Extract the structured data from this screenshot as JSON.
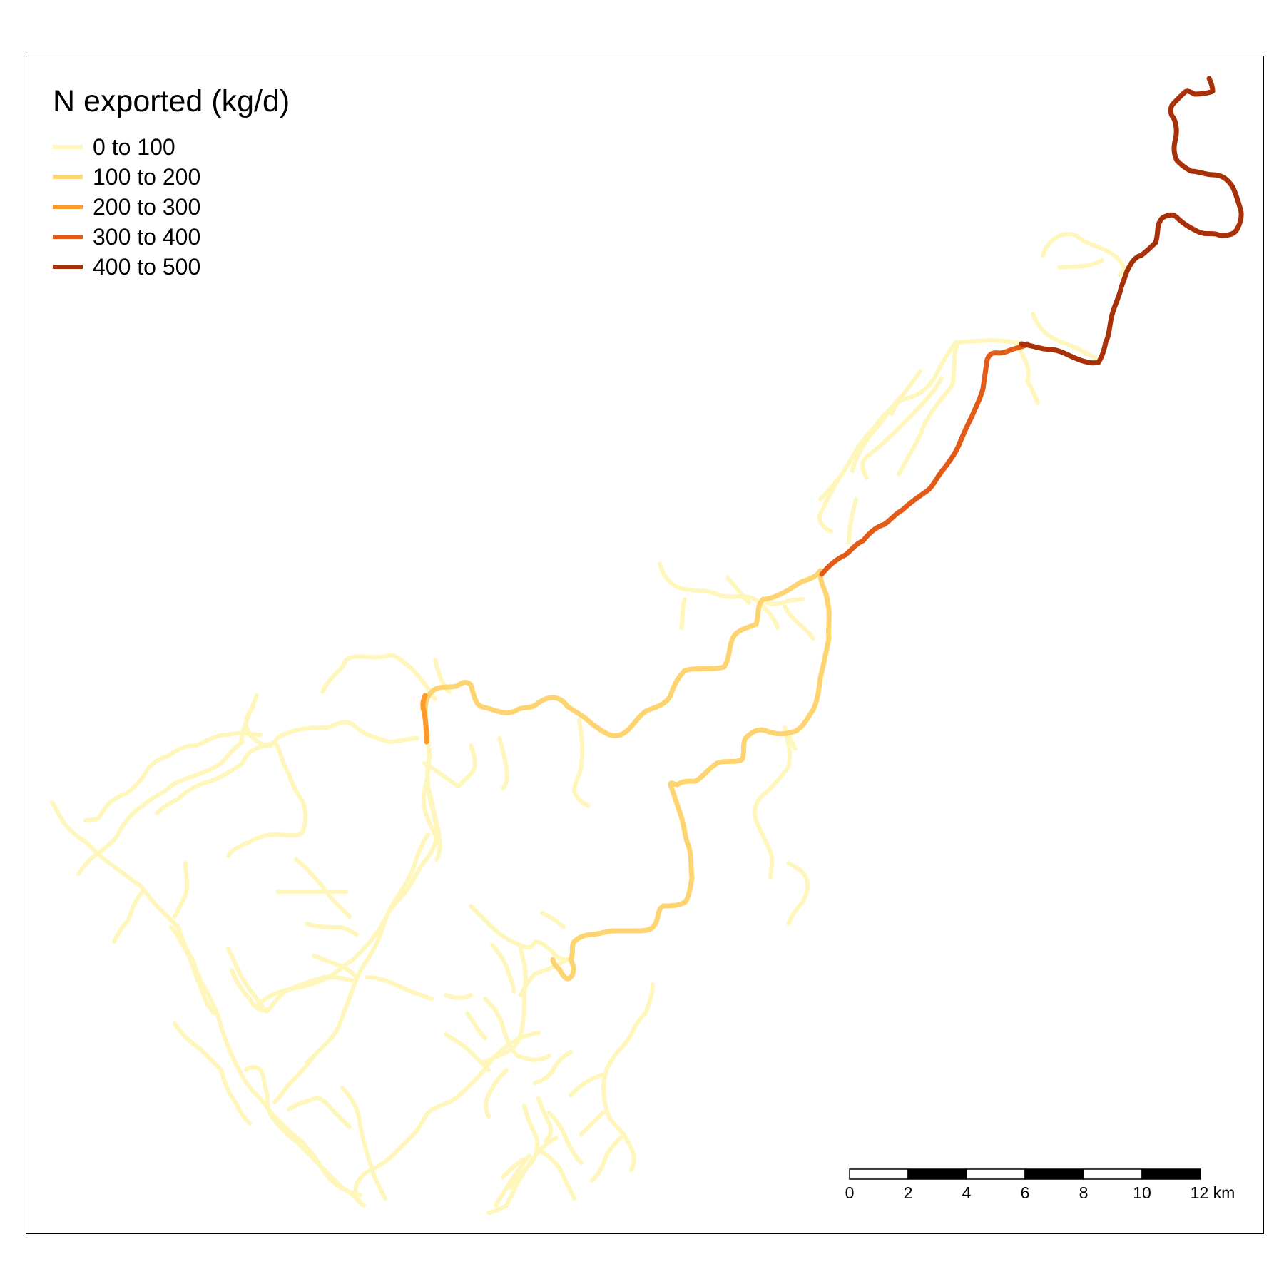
{
  "legend": {
    "title": "N exported (kg/d)",
    "classes": [
      {
        "label": "0 to 100",
        "color": "#fff6bc"
      },
      {
        "label": "100 to 200",
        "color": "#fdd470"
      },
      {
        "label": "200 to 300",
        "color": "#fd9a2a"
      },
      {
        "label": "300 to 400",
        "color": "#e35b17"
      },
      {
        "label": "400 to 500",
        "color": "#a8310a"
      }
    ]
  },
  "scale_bar": {
    "ticks": [
      "0",
      "2",
      "4",
      "6",
      "8",
      "10",
      "12 km"
    ]
  },
  "map": {
    "feature": "stream network",
    "outlet": "northeast"
  }
}
